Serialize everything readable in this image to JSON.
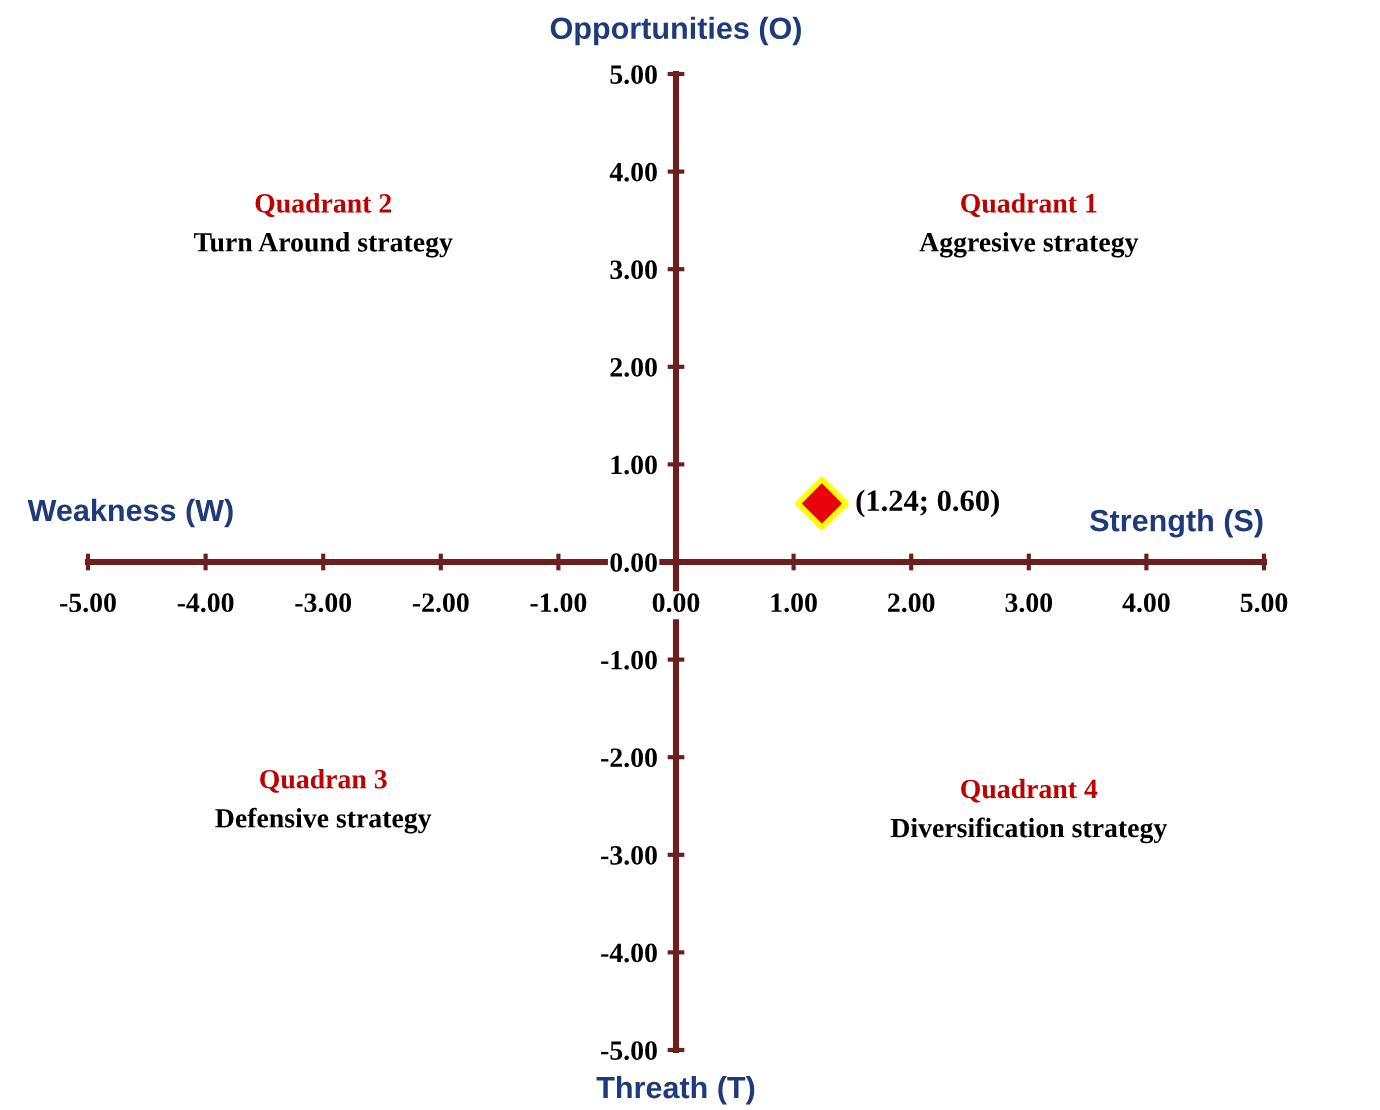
{
  "chart_data": {
    "type": "scatter",
    "xlabel": "Strength (S)",
    "ylabel": "Opportunities (O)",
    "series": [
      {
        "color": "#e8000b",
        "x": [
          1.24
        ],
        "values": [
          0.6
        ]
      }
    ],
    "marker": "diamond",
    "xlim": [
      -5,
      5
    ],
    "ylim": [
      -5,
      5
    ],
    "xticks": [
      {
        "value": -5,
        "label": "-5.00"
      },
      {
        "value": -4,
        "label": "-4.00"
      },
      {
        "value": -3,
        "label": "-3.00"
      },
      {
        "value": -2,
        "label": "-2.00"
      },
      {
        "value": -1,
        "label": "-1.00"
      },
      {
        "value": 0,
        "label": "0.00"
      },
      {
        "value": 1,
        "label": "1.00"
      },
      {
        "value": 2,
        "label": "2.00"
      },
      {
        "value": 3,
        "label": "3.00"
      },
      {
        "value": 4,
        "label": "4.00"
      },
      {
        "value": 5,
        "label": "5.00"
      }
    ],
    "yticks": [
      {
        "value": -5,
        "label": "-5.00"
      },
      {
        "value": -4,
        "label": "-4.00"
      },
      {
        "value": -3,
        "label": "-3.00"
      },
      {
        "value": -2,
        "label": "-2.00"
      },
      {
        "value": -1,
        "label": "-1.00"
      },
      {
        "value": 0,
        "label": "0.00"
      },
      {
        "value": 1,
        "label": "1.00"
      },
      {
        "value": 2,
        "label": "2.00"
      },
      {
        "value": 3,
        "label": "3.00"
      },
      {
        "value": 4,
        "label": "4.00"
      },
      {
        "value": 5,
        "label": "5.00"
      }
    ],
    "grid": false,
    "legend": false,
    "annotations": [
      {
        "text": "(1.24; 0.60)",
        "x": 1.24,
        "y": 0.6
      },
      "Weakness (W)",
      "Threath (T)",
      "Quadrant 1",
      "Aggresive strategy",
      "Quadrant 2",
      "Turn Around strategy",
      "Quadran 3",
      "Defensive strategy",
      "Quadrant 4",
      "Diversification strategy"
    ]
  }
}
